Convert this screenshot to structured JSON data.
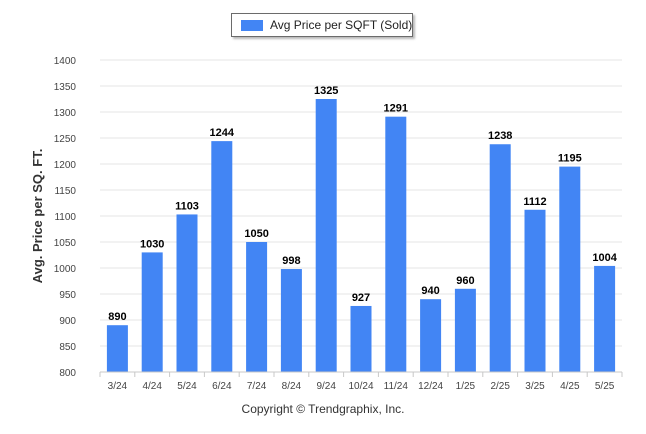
{
  "legend": {
    "label": "Avg Price per SQFT (Sold)"
  },
  "credit": "Copyright © Trendgraphix, Inc.",
  "colors": {
    "bar": "#4285f4",
    "grid": "#e6e6e6",
    "axis": "#c8c8c8",
    "tick_text": "#444444",
    "label_text": "#000000",
    "ylabel_text": "#333333"
  },
  "chart_data": {
    "type": "bar",
    "categories": [
      "3/24",
      "4/24",
      "5/24",
      "6/24",
      "7/24",
      "8/24",
      "9/24",
      "10/24",
      "11/24",
      "12/24",
      "1/25",
      "2/25",
      "3/25",
      "4/25",
      "5/25"
    ],
    "series": [
      {
        "name": "Avg Price per SQFT (Sold)",
        "values": [
          890,
          1030,
          1103,
          1244,
          1050,
          998,
          1325,
          927,
          1291,
          940,
          960,
          1238,
          1112,
          1195,
          1004
        ]
      }
    ],
    "ylabel": "Avg. Price per SQ. FT.",
    "xlabel": "",
    "ylim": [
      800,
      1400
    ],
    "yticks": [
      800,
      850,
      900,
      950,
      1000,
      1050,
      1100,
      1150,
      1200,
      1250,
      1300,
      1350,
      1400
    ],
    "grid": true,
    "data_labels": true,
    "legend_position": "top-center"
  }
}
